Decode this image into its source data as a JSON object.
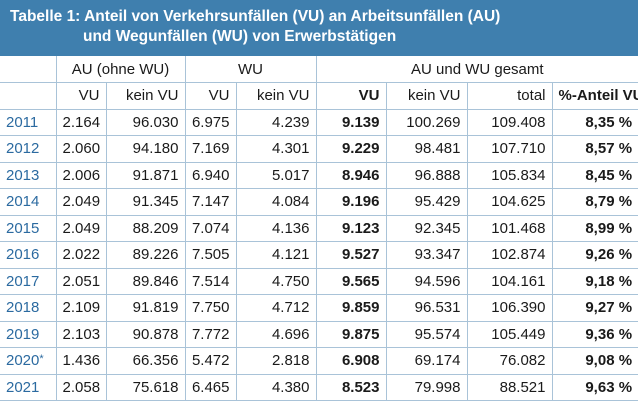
{
  "title": {
    "line1": "Tabelle 1: Anteil von Verkehrsunfällen (VU) an Arbeitsunfällen (AU)",
    "line2": "und Wegunfällen (WU) von Erwerbstätigen"
  },
  "header": {
    "groups": [
      "AU (ohne WU)",
      "WU",
      "AU und WU gesamt"
    ],
    "sub": [
      "VU",
      "kein VU",
      "VU",
      "kein VU",
      "VU",
      "kein VU",
      "total",
      "%-Anteil VU"
    ]
  },
  "rows": [
    {
      "year": "2011",
      "mark": "",
      "cells": [
        "2.164",
        "96.030",
        "6.975",
        "4.239",
        "9.139",
        "100.269",
        "109.408",
        "8,35 %"
      ]
    },
    {
      "year": "2012",
      "mark": "",
      "cells": [
        "2.060",
        "94.180",
        "7.169",
        "4.301",
        "9.229",
        "98.481",
        "107.710",
        "8,57 %"
      ]
    },
    {
      "year": "2013",
      "mark": "",
      "cells": [
        "2.006",
        "91.871",
        "6.940",
        "5.017",
        "8.946",
        "96.888",
        "105.834",
        "8,45 %"
      ]
    },
    {
      "year": "2014",
      "mark": "",
      "cells": [
        "2.049",
        "91.345",
        "7.147",
        "4.084",
        "9.196",
        "95.429",
        "104.625",
        "8,79 %"
      ]
    },
    {
      "year": "2015",
      "mark": "",
      "cells": [
        "2.049",
        "88.209",
        "7.074",
        "4.136",
        "9.123",
        "92.345",
        "101.468",
        "8,99 %"
      ]
    },
    {
      "year": "2016",
      "mark": "",
      "cells": [
        "2.022",
        "89.226",
        "7.505",
        "4.121",
        "9.527",
        "93.347",
        "102.874",
        "9,26 %"
      ]
    },
    {
      "year": "2017",
      "mark": "",
      "cells": [
        "2.051",
        "89.846",
        "7.514",
        "4.750",
        "9.565",
        "94.596",
        "104.161",
        "9,18 %"
      ]
    },
    {
      "year": "2018",
      "mark": "",
      "cells": [
        "2.109",
        "91.819",
        "7.750",
        "4.712",
        "9.859",
        "96.531",
        "106.390",
        "9,27 %"
      ]
    },
    {
      "year": "2019",
      "mark": "",
      "cells": [
        "2.103",
        "90.878",
        "7.772",
        "4.696",
        "9.875",
        "95.574",
        "105.449",
        "9,36 %"
      ]
    },
    {
      "year": "2020",
      "mark": "*",
      "cells": [
        "1.436",
        "66.356",
        "5.472",
        "2.818",
        "6.908",
        "69.174",
        "76.082",
        "9,08 %"
      ]
    },
    {
      "year": "2021",
      "mark": "",
      "cells": [
        "2.058",
        "75.618",
        "6.465",
        "4.380",
        "8.523",
        "79.998",
        "88.521",
        "9,63 %"
      ]
    }
  ]
}
